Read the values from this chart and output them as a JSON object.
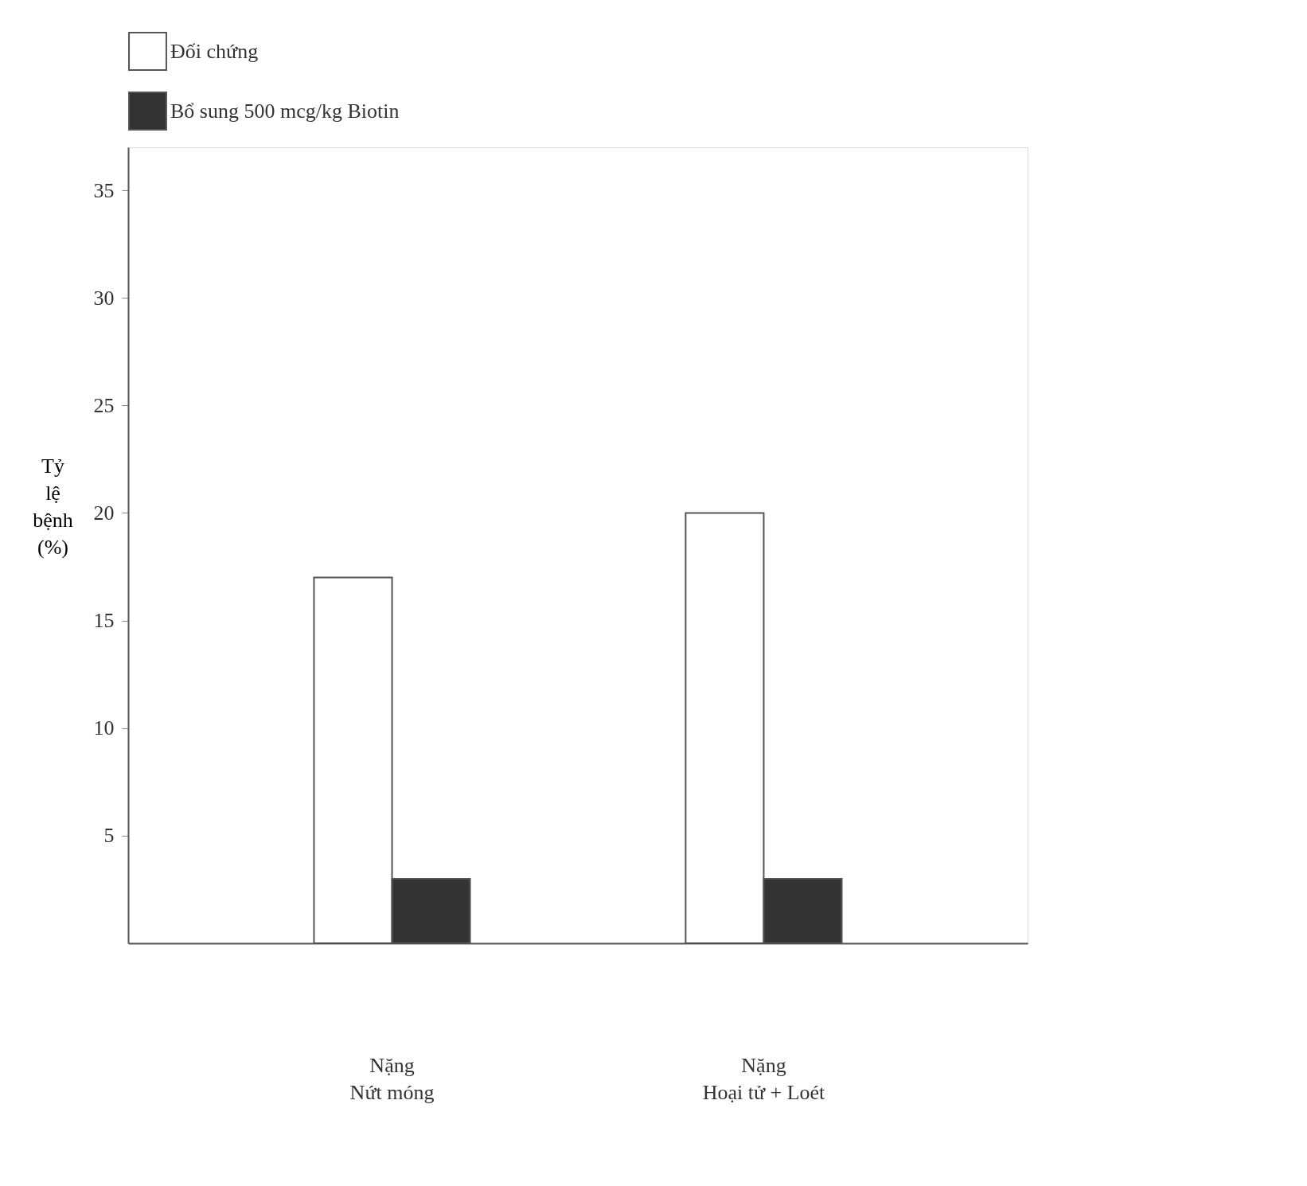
{
  "chart_data": {
    "type": "bar",
    "categories": [
      "Nặng\nNứt móng",
      "Nặng\nHoại tử + Loét"
    ],
    "series": [
      {
        "name": "Đối chứng",
        "color": "#ffffff",
        "values": [
          17,
          20
        ]
      },
      {
        "name": "Bổ sung 500 mcg/kg Biotin",
        "color": "#333333",
        "values": [
          3,
          3
        ]
      }
    ],
    "ylabel": "Tỷ\nlệ\nbệnh\n(%)",
    "ylim": [
      0,
      37
    ],
    "yticks": [
      5,
      10,
      15,
      20,
      25,
      30,
      35
    ],
    "grid": false,
    "legend": "top"
  }
}
